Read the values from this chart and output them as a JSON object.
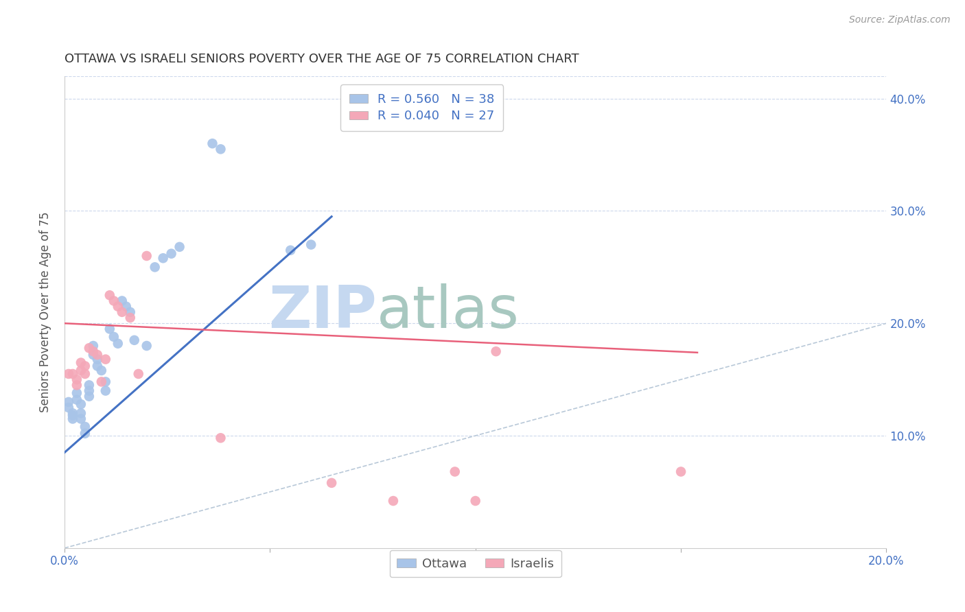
{
  "title": "OTTAWA VS ISRAELI SENIORS POVERTY OVER THE AGE OF 75 CORRELATION CHART",
  "source": "Source: ZipAtlas.com",
  "ylabel": "Seniors Poverty Over the Age of 75",
  "xlim": [
    0.0,
    0.2
  ],
  "ylim": [
    0.0,
    0.42
  ],
  "ottawa_R": "0.560",
  "ottawa_N": "38",
  "israelis_R": "0.040",
  "israelis_N": "27",
  "ottawa_color": "#a8c4e8",
  "israelis_color": "#f4a8b8",
  "ottawa_line_color": "#4472c4",
  "israelis_line_color": "#e8607a",
  "diagonal_color": "#b8c8d8",
  "watermark_zip_color": "#c8d8ec",
  "watermark_atlas_color": "#b0c8c8",
  "ottawa_x": [
    0.001,
    0.001,
    0.002,
    0.002,
    0.002,
    0.003,
    0.003,
    0.004,
    0.004,
    0.004,
    0.005,
    0.005,
    0.006,
    0.006,
    0.006,
    0.007,
    0.007,
    0.008,
    0.008,
    0.009,
    0.01,
    0.01,
    0.011,
    0.012,
    0.013,
    0.014,
    0.015,
    0.016,
    0.017,
    0.02,
    0.022,
    0.024,
    0.026,
    0.028,
    0.036,
    0.038,
    0.055,
    0.06
  ],
  "ottawa_y": [
    0.13,
    0.125,
    0.12,
    0.118,
    0.115,
    0.138,
    0.132,
    0.128,
    0.12,
    0.115,
    0.108,
    0.102,
    0.145,
    0.14,
    0.135,
    0.18,
    0.172,
    0.168,
    0.162,
    0.158,
    0.148,
    0.14,
    0.195,
    0.188,
    0.182,
    0.22,
    0.215,
    0.21,
    0.185,
    0.18,
    0.25,
    0.258,
    0.262,
    0.268,
    0.36,
    0.355,
    0.265,
    0.27
  ],
  "israelis_x": [
    0.001,
    0.002,
    0.003,
    0.003,
    0.004,
    0.004,
    0.005,
    0.005,
    0.006,
    0.007,
    0.008,
    0.009,
    0.01,
    0.011,
    0.012,
    0.013,
    0.014,
    0.016,
    0.018,
    0.02,
    0.038,
    0.065,
    0.08,
    0.095,
    0.1,
    0.105,
    0.15
  ],
  "israelis_y": [
    0.155,
    0.155,
    0.15,
    0.145,
    0.165,
    0.158,
    0.162,
    0.155,
    0.178,
    0.175,
    0.172,
    0.148,
    0.168,
    0.225,
    0.22,
    0.215,
    0.21,
    0.205,
    0.155,
    0.26,
    0.098,
    0.058,
    0.042,
    0.068,
    0.042,
    0.175,
    0.068
  ]
}
